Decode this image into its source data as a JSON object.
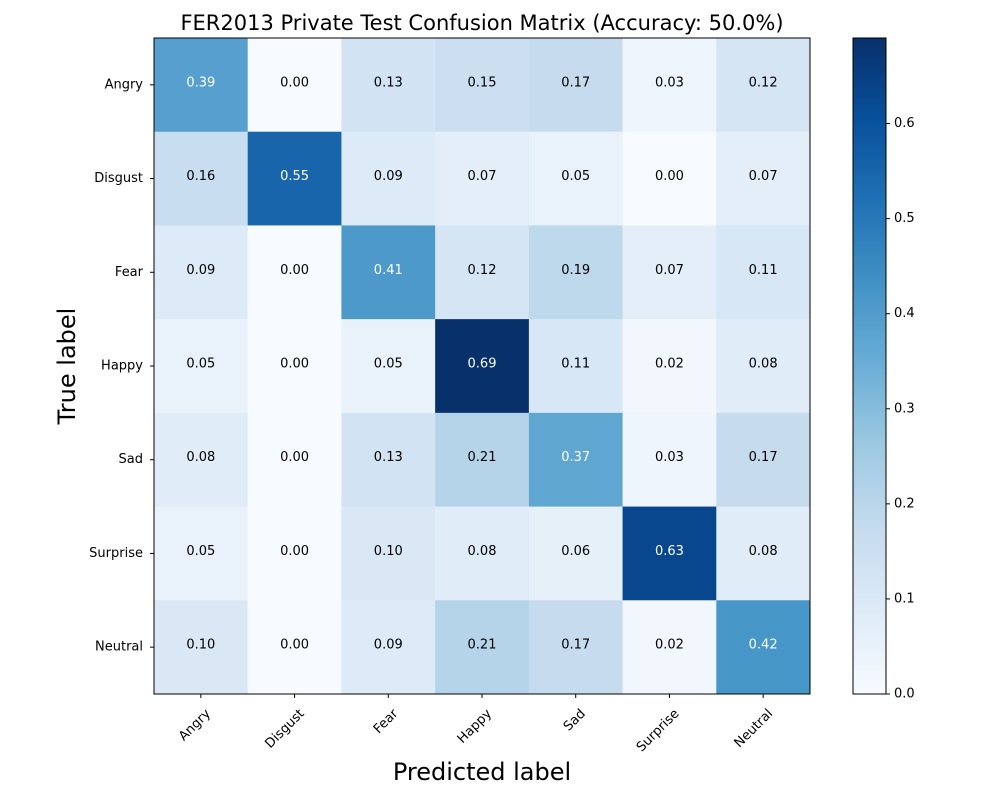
{
  "chart_data": {
    "type": "heatmap",
    "title": "FER2013 Private Test Confusion Matrix (Accuracy: 50.0%)",
    "xlabel": "Predicted label",
    "ylabel": "True label",
    "x_categories": [
      "Angry",
      "Disgust",
      "Fear",
      "Happy",
      "Sad",
      "Surprise",
      "Neutral"
    ],
    "y_categories": [
      "Angry",
      "Disgust",
      "Fear",
      "Happy",
      "Sad",
      "Surprise",
      "Neutral"
    ],
    "values": [
      [
        0.39,
        0.0,
        0.13,
        0.15,
        0.17,
        0.03,
        0.12
      ],
      [
        0.16,
        0.55,
        0.09,
        0.07,
        0.05,
        0.0,
        0.07
      ],
      [
        0.09,
        0.0,
        0.41,
        0.12,
        0.19,
        0.07,
        0.11
      ],
      [
        0.05,
        0.0,
        0.05,
        0.69,
        0.11,
        0.02,
        0.08
      ],
      [
        0.08,
        0.0,
        0.13,
        0.21,
        0.37,
        0.03,
        0.17
      ],
      [
        0.05,
        0.0,
        0.1,
        0.08,
        0.06,
        0.63,
        0.08
      ],
      [
        0.1,
        0.0,
        0.09,
        0.21,
        0.17,
        0.02,
        0.42
      ]
    ],
    "value_format": "0.00",
    "colormap": "Blues",
    "colorscale": [
      "#f7fbff",
      "#deebf7",
      "#c6dbef",
      "#9ecae1",
      "#6baed6",
      "#4292c6",
      "#2171b5",
      "#08519c",
      "#08306b"
    ],
    "color_range": [
      0,
      0.69
    ],
    "colorbar_ticks": [
      "0.0",
      "0.1",
      "0.2",
      "0.3",
      "0.4",
      "0.5",
      "0.6"
    ],
    "text_color_dark": "#000000",
    "text_color_light": "#ffffff",
    "text_threshold": 0.345
  }
}
